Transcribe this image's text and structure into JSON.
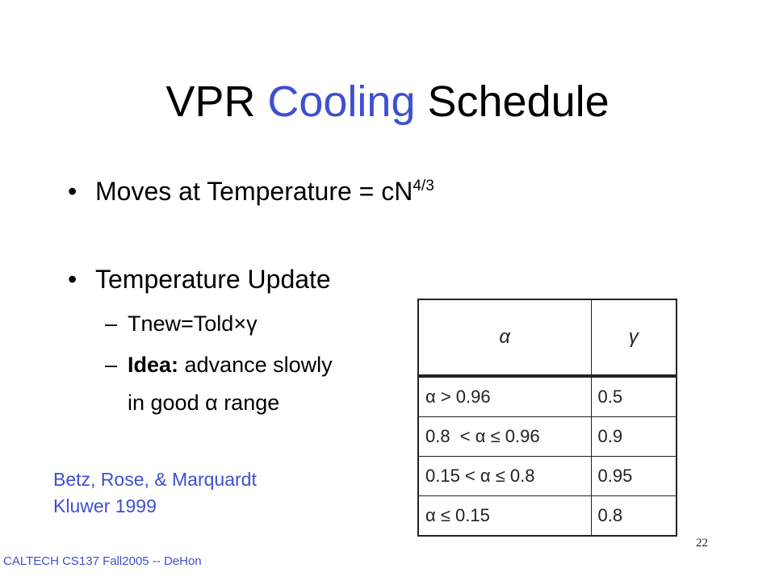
{
  "slide": {
    "title": {
      "part1": "VPR ",
      "accent": "Cooling",
      "part2": " Schedule"
    },
    "bullets": [
      {
        "marker": "•",
        "text": "Moves at Temperature = cN",
        "superscript": "4/3"
      },
      {
        "marker": "•",
        "text": "Temperature Update"
      }
    ],
    "subbullets": [
      {
        "marker": "–",
        "text": "Tnew=Told×γ"
      },
      {
        "marker": "–",
        "bold": "Idea:",
        "text": " advance slowly",
        "continuation": "in good α range"
      }
    ],
    "table": {
      "headers": [
        "α",
        "γ"
      ],
      "rows": [
        [
          "α > 0.96",
          "0.5"
        ],
        [
          "0.8  < α ≤ 0.96",
          "0.9"
        ],
        [
          "0.15 < α ≤ 0.8",
          "0.95"
        ],
        [
          "α ≤ 0.15",
          "0.8"
        ]
      ]
    },
    "citation": {
      "line1": "Betz, Rose, & Marquardt",
      "line2": "Kluwer 1999"
    },
    "footer": "CALTECH CS137 Fall2005 -- DeHon",
    "page_number": "22",
    "colors": {
      "accent": "#3e4fd0",
      "text": "#000000",
      "background": "#ffffff"
    }
  }
}
